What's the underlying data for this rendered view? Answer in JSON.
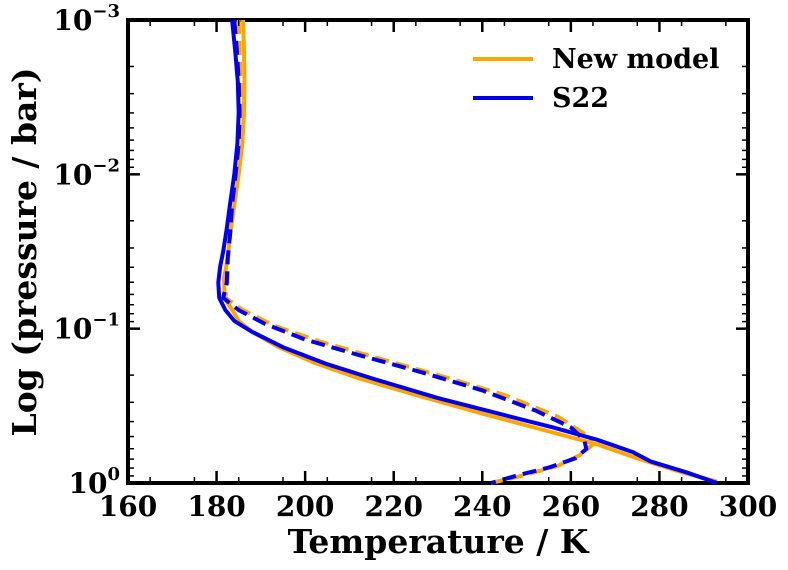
{
  "chart_data": {
    "type": "line",
    "title": "",
    "xlabel": "Temperature / K",
    "ylabel": "Log (pressure / bar)",
    "xlim": [
      160,
      300
    ],
    "ylim_log10": [
      -3,
      0
    ],
    "y_scale": "log",
    "y_inverted": true,
    "x_ticks": [
      160,
      180,
      200,
      220,
      240,
      260,
      280,
      300
    ],
    "x_tick_labels": [
      "160",
      "180",
      "200",
      "220",
      "240",
      "260",
      "280",
      "300"
    ],
    "y_ticks": [
      {
        "log10": -3,
        "base": "10",
        "exp": "−3"
      },
      {
        "log10": -2,
        "base": "10",
        "exp": "−2"
      },
      {
        "log10": -1,
        "base": "10",
        "exp": "−1"
      },
      {
        "log10": 0,
        "base": "10",
        "exp": "0"
      }
    ],
    "legend": {
      "position": "top-right",
      "entries": [
        "New model",
        "S22"
      ]
    },
    "series": [
      {
        "name": "New model",
        "color": "#ffa500",
        "style": "solid",
        "points": [
          [
            186.0,
            -3.0
          ],
          [
            186.2,
            -2.8
          ],
          [
            186.3,
            -2.6
          ],
          [
            186.2,
            -2.4
          ],
          [
            185.8,
            -2.2
          ],
          [
            185.0,
            -2.0
          ],
          [
            184.0,
            -1.8
          ],
          [
            183.0,
            -1.6
          ],
          [
            182.5,
            -1.45
          ],
          [
            181.7,
            -1.33
          ],
          [
            181.8,
            -1.2
          ],
          [
            184.0,
            -1.1
          ],
          [
            185.0,
            -1.05
          ],
          [
            188.0,
            -0.98
          ],
          [
            194.0,
            -0.88
          ],
          [
            202.0,
            -0.78
          ],
          [
            212.0,
            -0.68
          ],
          [
            225.0,
            -0.57
          ],
          [
            240.0,
            -0.45
          ],
          [
            253.0,
            -0.35
          ],
          [
            266.0,
            -0.25
          ],
          [
            275.0,
            -0.16
          ],
          [
            285.0,
            -0.07
          ],
          [
            293.0,
            -0.01
          ]
        ]
      },
      {
        "name": "New model (dashed)",
        "color": "#ffa500",
        "style": "dashed",
        "points": [
          [
            185.0,
            -3.0
          ],
          [
            185.2,
            -2.8
          ],
          [
            185.4,
            -2.6
          ],
          [
            185.5,
            -2.4
          ],
          [
            185.2,
            -2.2
          ],
          [
            184.5,
            -2.0
          ],
          [
            183.7,
            -1.8
          ],
          [
            183.0,
            -1.6
          ],
          [
            182.6,
            -1.45
          ],
          [
            182.5,
            -1.3
          ],
          [
            182.0,
            -1.2
          ],
          [
            186.0,
            -1.12
          ],
          [
            193.0,
            -1.02
          ],
          [
            203.0,
            -0.92
          ],
          [
            215.0,
            -0.82
          ],
          [
            230.0,
            -0.7
          ],
          [
            245.0,
            -0.57
          ],
          [
            257.0,
            -0.43
          ],
          [
            263.0,
            -0.32
          ],
          [
            265.0,
            -0.25
          ],
          [
            262.0,
            -0.18
          ],
          [
            257.0,
            -0.11
          ],
          [
            248.0,
            -0.04
          ],
          [
            242.0,
            0.0
          ]
        ]
      },
      {
        "name": "S22",
        "color": "#0000ee",
        "style": "solid",
        "points": [
          [
            183.5,
            -3.0
          ],
          [
            184.2,
            -2.8
          ],
          [
            184.8,
            -2.6
          ],
          [
            185.0,
            -2.4
          ],
          [
            184.7,
            -2.2
          ],
          [
            184.0,
            -2.0
          ],
          [
            183.0,
            -1.8
          ],
          [
            182.3,
            -1.65
          ],
          [
            181.5,
            -1.5
          ],
          [
            180.8,
            -1.4
          ],
          [
            180.4,
            -1.3
          ],
          [
            180.6,
            -1.2
          ],
          [
            182.0,
            -1.12
          ],
          [
            184.0,
            -1.05
          ],
          [
            188.0,
            -0.98
          ],
          [
            195.0,
            -0.88
          ],
          [
            205.0,
            -0.77
          ],
          [
            216.0,
            -0.67
          ],
          [
            230.0,
            -0.55
          ],
          [
            245.0,
            -0.44
          ],
          [
            256.0,
            -0.36
          ],
          [
            266.0,
            -0.28
          ],
          [
            274.0,
            -0.2
          ],
          [
            278.0,
            -0.14
          ],
          [
            286.0,
            -0.07
          ],
          [
            293.0,
            0.0
          ]
        ]
      },
      {
        "name": "S22 (dashed)",
        "color": "#0000ee",
        "style": "dashed",
        "points": [
          [
            184.0,
            -3.0
          ],
          [
            184.6,
            -2.8
          ],
          [
            185.0,
            -2.6
          ],
          [
            185.2,
            -2.4
          ],
          [
            185.0,
            -2.2
          ],
          [
            184.3,
            -2.0
          ],
          [
            183.5,
            -1.8
          ],
          [
            183.0,
            -1.6
          ],
          [
            182.5,
            -1.45
          ],
          [
            182.3,
            -1.3
          ],
          [
            181.5,
            -1.2
          ],
          [
            185.0,
            -1.12
          ],
          [
            191.0,
            -1.03
          ],
          [
            200.0,
            -0.93
          ],
          [
            212.0,
            -0.83
          ],
          [
            226.0,
            -0.72
          ],
          [
            240.0,
            -0.6
          ],
          [
            252.0,
            -0.47
          ],
          [
            260.0,
            -0.36
          ],
          [
            263.0,
            -0.28
          ],
          [
            263.5,
            -0.22
          ],
          [
            261.0,
            -0.16
          ],
          [
            255.0,
            -0.1
          ],
          [
            248.0,
            -0.05
          ],
          [
            242.0,
            0.0
          ]
        ]
      }
    ]
  }
}
